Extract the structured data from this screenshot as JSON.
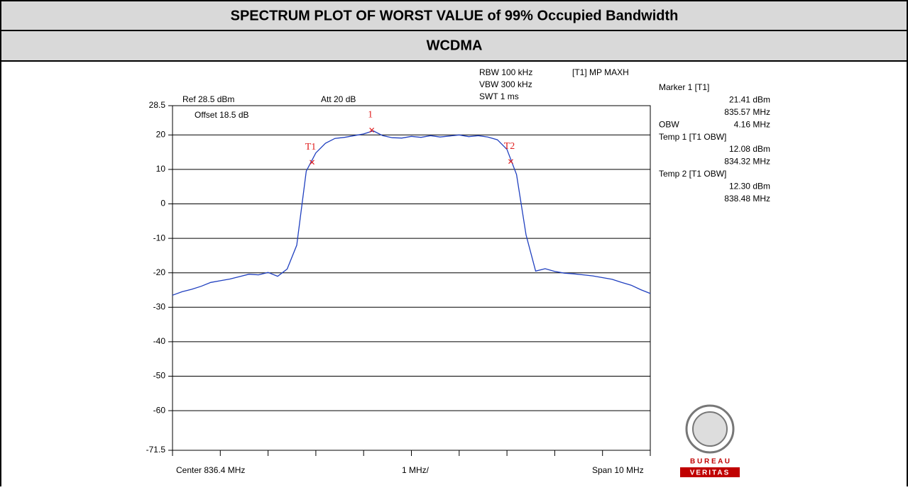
{
  "header": {
    "title": "SPECTRUM PLOT OF WORST VALUE of 99%  Occupied Bandwidth",
    "subtitle": "WCDMA"
  },
  "settings": {
    "rbw": "RBW 100 kHz",
    "vbw": "VBW 300 kHz",
    "swt": "SWT 1 ms",
    "trace": "[T1] MP MAXH",
    "ref": "Ref 28.5 dBm",
    "att": "Att  20 dB",
    "offset": "Offset 18.5 dB",
    "center": "Center 836.4 MHz",
    "div": "1 MHz/",
    "span": "Span 10 MHz"
  },
  "readout": [
    {
      "label": "Marker 1 [T1]"
    },
    {
      "value": "21.41 dBm"
    },
    {
      "value": "835.57 MHz"
    },
    {
      "label": "OBW",
      "value": "4.16 MHz"
    },
    {
      "label": "Temp 1 [T1 OBW]"
    },
    {
      "value": "12.08 dBm"
    },
    {
      "value": "834.32 MHz"
    },
    {
      "label": "Temp 2 [T1 OBW]"
    },
    {
      "value": "12.30 dBm"
    },
    {
      "value": "838.48 MHz"
    }
  ],
  "logo": {
    "top": "B U R E A U",
    "bottom": "VERITAS"
  },
  "chart_data": {
    "type": "line",
    "color": "#1f3fbf",
    "x": [
      831.4,
      831.6,
      831.8,
      832.0,
      832.2,
      832.4,
      832.6,
      832.8,
      833.0,
      833.2,
      833.4,
      833.6,
      833.8,
      834.0,
      834.2,
      834.4,
      834.6,
      834.8,
      835.0,
      835.2,
      835.4,
      835.6,
      835.8,
      836.0,
      836.2,
      836.4,
      836.6,
      836.8,
      837.0,
      837.2,
      837.4,
      837.6,
      837.8,
      838.0,
      838.2,
      838.4,
      838.6,
      838.8,
      839.0,
      839.2,
      839.4,
      839.6,
      839.8,
      840.0,
      840.2,
      840.4,
      840.6,
      840.8,
      841.0,
      841.2,
      841.4
    ],
    "values": [
      -26.5,
      -25.5,
      -24.8,
      -23.9,
      -22.8,
      -22.3,
      -21.8,
      -21.1,
      -20.4,
      -20.6,
      -19.9,
      -21.0,
      -18.9,
      -12,
      9.5,
      14.8,
      17.6,
      19.0,
      19.3,
      19.8,
      20.3,
      21.2,
      19.8,
      19.2,
      19.1,
      19.6,
      19.3,
      19.8,
      19.4,
      19.7,
      20.0,
      19.5,
      19.8,
      19.4,
      18.6,
      15.8,
      8.5,
      -9.0,
      -19.5,
      -18.8,
      -19.6,
      -20.1,
      -20.3,
      -20.6,
      -20.9,
      -21.4,
      -21.9,
      -22.8,
      -23.6,
      -24.9,
      -26.0
    ],
    "markers": [
      {
        "label": "1",
        "x": 835.57,
        "y": 21.41
      },
      {
        "label": "T1",
        "x": 834.32,
        "y": 12.08
      },
      {
        "label": "T2",
        "x": 838.48,
        "y": 12.3
      }
    ],
    "marker_color": "#e02020",
    "xlim": [
      831.4,
      841.4
    ],
    "xticks": [
      831.4,
      832.4,
      833.4,
      834.4,
      835.4,
      836.4,
      837.4,
      838.4,
      839.4,
      840.4,
      841.4
    ],
    "ylim": [
      -71.5,
      28.5
    ],
    "yticks": [
      28.5,
      20,
      10,
      0,
      -10,
      -20,
      -30,
      -40,
      -50,
      -60,
      -71.5
    ],
    "grid": true
  }
}
